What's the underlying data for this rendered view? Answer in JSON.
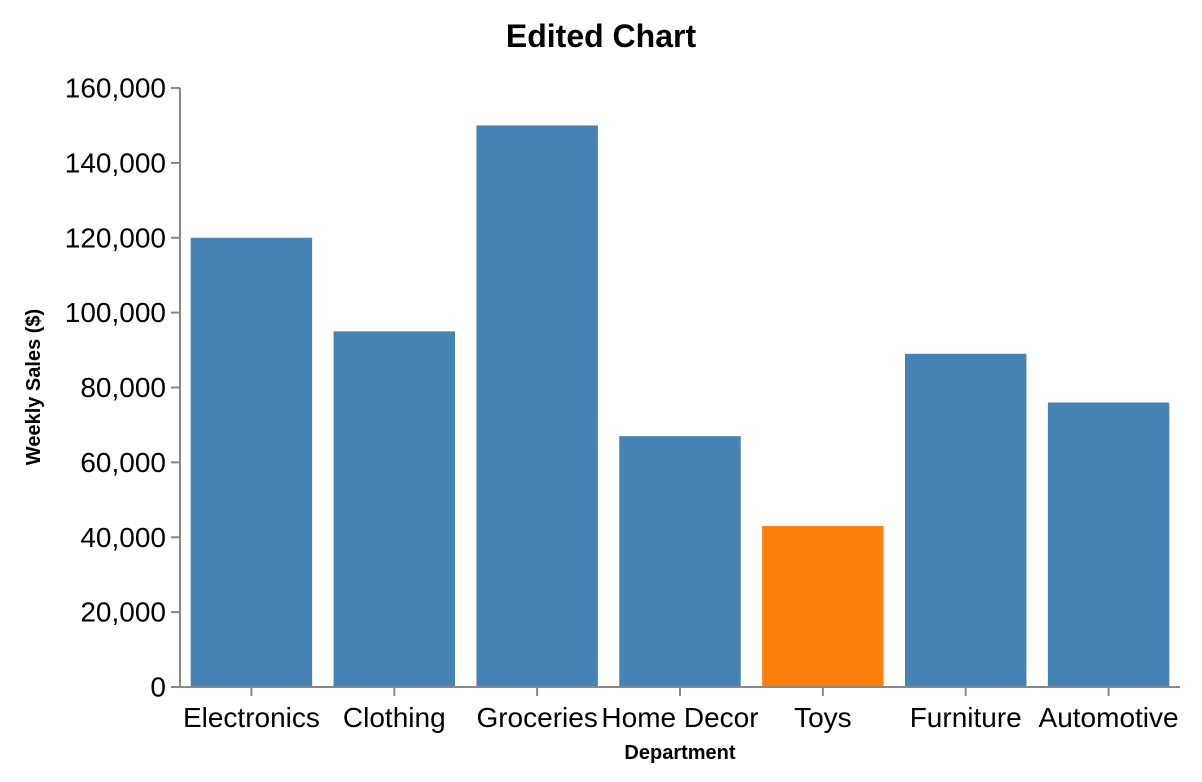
{
  "chart_data": {
    "type": "bar",
    "title": "Edited Chart",
    "xlabel": "Department",
    "ylabel": "Weekly Sales ($)",
    "categories": [
      "Electronics",
      "Clothing",
      "Groceries",
      "Home Decor",
      "Toys",
      "Furniture",
      "Automotive"
    ],
    "values": [
      120000,
      95000,
      150000,
      67000,
      43000,
      89000,
      76000
    ],
    "bar_colors": [
      "#4682b4",
      "#4682b4",
      "#4682b4",
      "#4682b4",
      "#ff7f0e",
      "#4682b4",
      "#4682b4"
    ],
    "ylim": [
      0,
      160000
    ],
    "yticks": [
      0,
      20000,
      40000,
      60000,
      80000,
      100000,
      120000,
      140000,
      160000
    ],
    "ytick_labels": [
      "0",
      "20,000",
      "40,000",
      "60,000",
      "80,000",
      "100,000",
      "120,000",
      "140,000",
      "160,000"
    ],
    "grid": false,
    "legend": "none"
  }
}
